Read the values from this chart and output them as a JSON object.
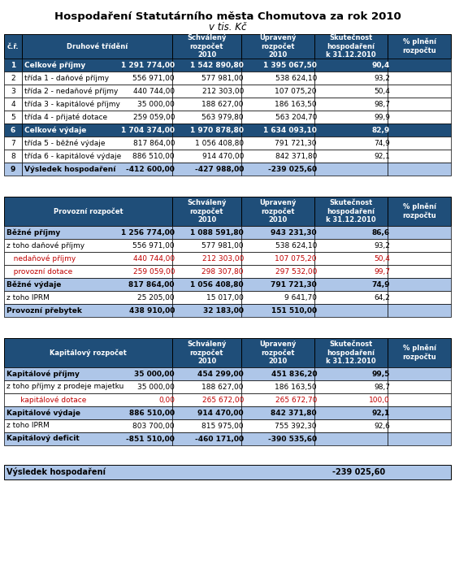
{
  "title": "Hospodaření Statutárního města Chomutova za rok 2010",
  "subtitle": "v tis. Kč",
  "header_bg": "#1f4e79",
  "header_fg": "#ffffff",
  "col_headers": [
    "",
    "Schválený\nrozpočet\n2010",
    "Upravený\nrozpočet\n2010",
    "Skutečnost\nhospodaření\nk 31.12.2010",
    "% plnění\nrozpočtu"
  ],
  "table1_header": [
    "č.ř.",
    "Druhové třídění",
    "Schválený\nrozpočet\n2010",
    "Upravený\nrozpočet\n2010",
    "Skutečnost\nhospodaření\nk 31.12.2010",
    "% plnění\nrozpočtu"
  ],
  "table1_rows": [
    [
      "1",
      "Celkové příjmy",
      "1 291 774,00",
      "1 542 890,80",
      "1 395 067,50",
      "90,4",
      "bold",
      "#ffffff",
      "#1f4e79"
    ],
    [
      "2",
      "třída 1 - daňové příjmy",
      "556 971,00",
      "577 981,00",
      "538 624,10",
      "93,2",
      "normal",
      "#000000",
      "#ffffff"
    ],
    [
      "3",
      "třída 2 - nedaňové příjmy",
      "440 744,00",
      "212 303,00",
      "107 075,20",
      "50,4",
      "normal",
      "#000000",
      "#ffffff"
    ],
    [
      "4",
      "třída 3 - kapitálové příjmy",
      "35 000,00",
      "188 627,00",
      "186 163,50",
      "98,7",
      "normal",
      "#000000",
      "#ffffff"
    ],
    [
      "5",
      "třída 4 - přijaté dotace",
      "259 059,00",
      "563 979,80",
      "563 204,70",
      "99,9",
      "normal",
      "#000000",
      "#ffffff"
    ],
    [
      "6",
      "Celkové výdaje",
      "1 704 374,00",
      "1 970 878,80",
      "1 634 093,10",
      "82,9",
      "bold",
      "#ffffff",
      "#1f4e79"
    ],
    [
      "7",
      "třída 5 - běžné výdaje",
      "817 864,00",
      "1 056 408,80",
      "791 721,30",
      "74,9",
      "normal",
      "#000000",
      "#ffffff"
    ],
    [
      "8",
      "třída 6 - kapitálové výdaje",
      "886 510,00",
      "914 470,00",
      "842 371,80",
      "92,1",
      "normal",
      "#000000",
      "#ffffff"
    ],
    [
      "9",
      "Výsledek hospodaření",
      "-412 600,00",
      "-427 988,00",
      "-239 025,60",
      "",
      "bold",
      "#000000",
      "#aec6e8"
    ]
  ],
  "table2_header": [
    "Provozní rozpočet",
    "Schválený\nrozpočet\n2010",
    "Upravený\nrozpočet\n2010",
    "Skutečnost\nhospodaření\nk 31.12.2010",
    "% plnění\nrozpočtu"
  ],
  "table2_rows": [
    [
      "Běžné příjmy",
      "1 256 774,00",
      "1 088 591,80",
      "943 231,30",
      "86,6",
      "bold",
      "#000000",
      "#aec6e8"
    ],
    [
      "z toho daňové příjmy",
      "556 971,00",
      "577 981,00",
      "538 624,10",
      "93,2",
      "normal",
      "#000000",
      "#ffffff"
    ],
    [
      "   nedaňové příjmy",
      "440 744,00",
      "212 303,00",
      "107 075,20",
      "50,4",
      "normal",
      "#c00000",
      "#ffffff"
    ],
    [
      "   provozní dotace",
      "259 059,00",
      "298 307,80",
      "297 532,00",
      "99,7",
      "normal",
      "#c00000",
      "#ffffff"
    ],
    [
      "Běžné výdaje",
      "817 864,00",
      "1 056 408,80",
      "791 721,30",
      "74,9",
      "bold",
      "#000000",
      "#aec6e8"
    ],
    [
      "z toho IPRM",
      "25 205,00",
      "15 017,00",
      "9 641,70",
      "64,2",
      "normal",
      "#000000",
      "#ffffff"
    ],
    [
      "Provozní přebytek",
      "438 910,00",
      "32 183,00",
      "151 510,00",
      "",
      "bold",
      "#000000",
      "#aec6e8"
    ]
  ],
  "table3_header": [
    "Kapitálový rozpočet",
    "Schválený\nrozpočet\n2010",
    "Upravený\nrozpočet\n2010",
    "Skutečnost\nhospodaření\nk 31.12.2010",
    "% plnění\nrozpočtu"
  ],
  "table3_rows": [
    [
      "Kapitálové příjmy",
      "35 000,00",
      "454 299,00",
      "451 836,20",
      "99,5",
      "bold",
      "#000000",
      "#aec6e8"
    ],
    [
      "z toho příjmy z prodeje majetku",
      "35 000,00",
      "188 627,00",
      "186 163,50",
      "98,7",
      "normal",
      "#000000",
      "#ffffff"
    ],
    [
      "      kapitálové dotace",
      "0,00",
      "265 672,00",
      "265 672,70",
      "100,0",
      "normal",
      "#c00000",
      "#ffffff"
    ],
    [
      "Kapitálové výdaje",
      "886 510,00",
      "914 470,00",
      "842 371,80",
      "92,1",
      "bold",
      "#000000",
      "#aec6e8"
    ],
    [
      "z toho IPRM",
      "803 700,00",
      "815 975,00",
      "755 392,30",
      "92,6",
      "normal",
      "#000000",
      "#ffffff"
    ],
    [
      "Kapitálový deficit",
      "-851 510,00",
      "-460 171,00",
      "-390 535,60",
      "",
      "bold",
      "#000000",
      "#aec6e8"
    ]
  ],
  "footer_row": [
    "Výsledek hospodaření",
    "-239 025,60"
  ],
  "dark_blue": "#1f4e79",
  "light_blue": "#aec6e8",
  "white": "#ffffff",
  "red_text": "#c00000",
  "border_color": "#000000"
}
